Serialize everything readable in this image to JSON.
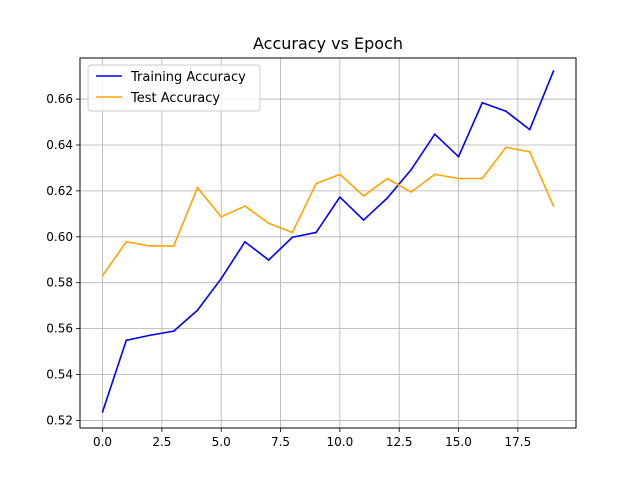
{
  "chart_data": {
    "type": "line",
    "title": "Accuracy vs Epoch",
    "xlabel": "",
    "ylabel": "",
    "xlim": [
      -0.95,
      19.95
    ],
    "ylim": [
      0.5167,
      0.6779
    ],
    "grid": true,
    "legend_position": "top-left",
    "x": [
      0,
      1,
      2,
      3,
      4,
      5,
      6,
      7,
      8,
      9,
      10,
      11,
      12,
      13,
      14,
      15,
      16,
      17,
      18,
      19
    ],
    "xticks": [
      0.0,
      2.5,
      5.0,
      7.5,
      10.0,
      12.5,
      15.0,
      17.5
    ],
    "xtick_labels": [
      "0.0",
      "2.5",
      "5.0",
      "7.5",
      "10.0",
      "12.5",
      "15.0",
      "17.5"
    ],
    "yticks": [
      0.52,
      0.54,
      0.56,
      0.58,
      0.6,
      0.62,
      0.64,
      0.66
    ],
    "ytick_labels": [
      "0.52",
      "0.54",
      "0.56",
      "0.58",
      "0.60",
      "0.62",
      "0.64",
      "0.66"
    ],
    "series": [
      {
        "name": "Training Accuracy",
        "color": "#0000ff",
        "values": [
          0.5237,
          0.5549,
          0.5571,
          0.5589,
          0.568,
          0.5818,
          0.5978,
          0.5899,
          0.5998,
          0.6019,
          0.6173,
          0.6073,
          0.6169,
          0.6292,
          0.6447,
          0.6349,
          0.6584,
          0.6547,
          0.6467,
          0.6722
        ]
      },
      {
        "name": "Test Accuracy",
        "color": "#ffa500",
        "values": [
          0.5831,
          0.5978,
          0.596,
          0.596,
          0.6214,
          0.6087,
          0.6134,
          0.6059,
          0.6019,
          0.6232,
          0.6272,
          0.6178,
          0.6254,
          0.6195,
          0.6272,
          0.6254,
          0.6254,
          0.639,
          0.637,
          0.6134
        ]
      }
    ]
  }
}
